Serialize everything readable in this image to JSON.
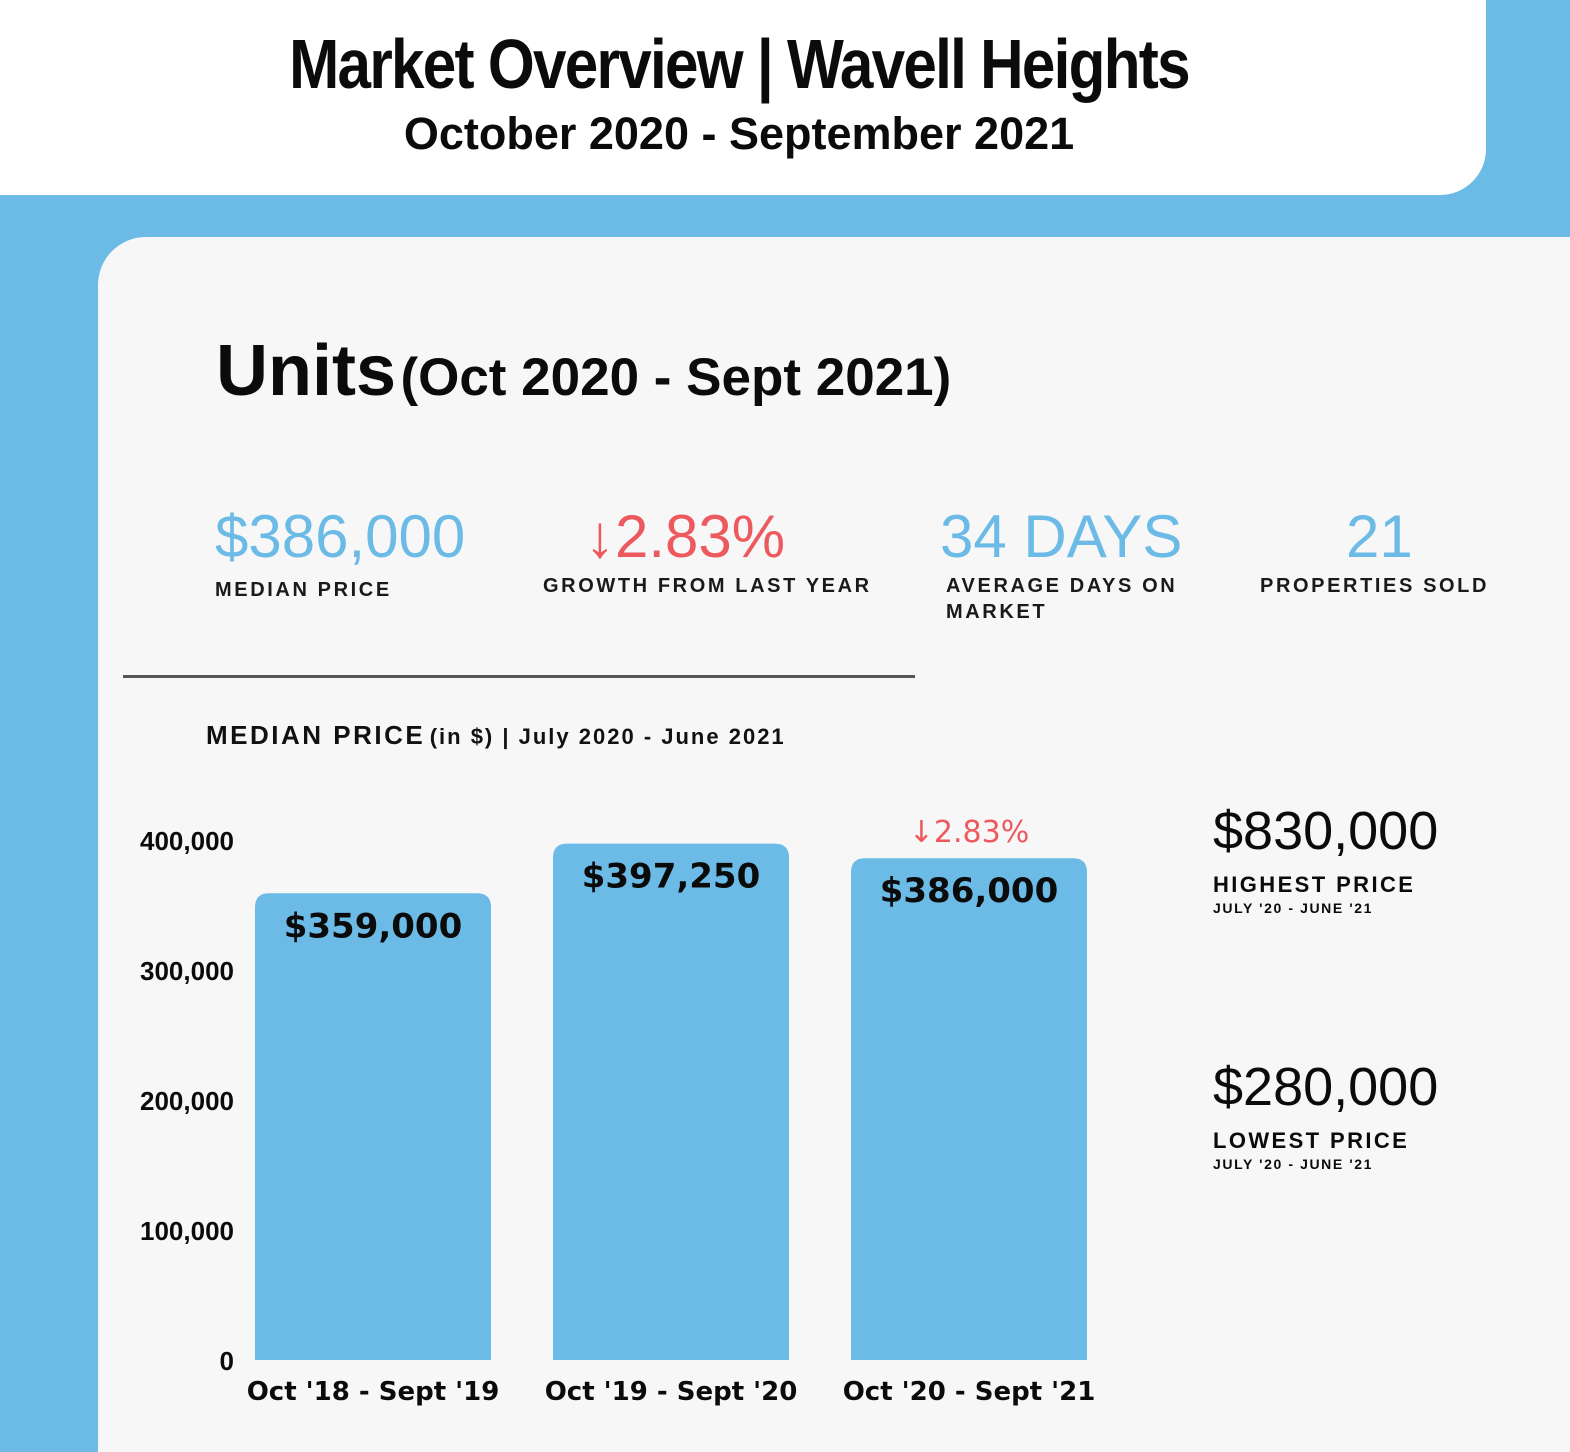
{
  "header": {
    "title": "Market Overview | Wavell Heights",
    "subtitle": "October 2020 - September 2021"
  },
  "section": {
    "title_main": "Units",
    "title_period": "(Oct 2020 - Sept 2021)"
  },
  "stats": [
    {
      "value": "$386,000",
      "label": "MEDIAN PRICE"
    },
    {
      "value": "↓2.83%",
      "label": "GROWTH FROM LAST YEAR"
    },
    {
      "value": "34 DAYS",
      "label": "AVERAGE DAYS ON MARKET"
    },
    {
      "value": "21",
      "label": "PROPERTIES SOLD"
    }
  ],
  "chart_heading": {
    "main": "MEDIAN PRICE",
    "rest": "(in $) | July 2020 - June 2021"
  },
  "side_stats": [
    {
      "value": "$830,000",
      "label": "HIGHEST PRICE",
      "period": "JULY '20 - JUNE '21"
    },
    {
      "value": "$280,000",
      "label": "LOWEST PRICE",
      "period": "JULY '20 - JUNE '21"
    }
  ],
  "colors": {
    "accent_blue": "#6cbbe7",
    "negative_red": "#ec5a5f",
    "card_bg": "#f7f7f7"
  },
  "chart_data": {
    "type": "bar",
    "title": "MEDIAN PRICE (in $) | July 2020 - June 2021",
    "categories": [
      "Oct '18 - Sept '19",
      "Oct '19 - Sept '20",
      "Oct '20 - Sept '21"
    ],
    "values": [
      359000,
      397250,
      386000
    ],
    "data_labels": [
      "$359,000",
      "$397,250",
      "$386,000"
    ],
    "annotations": [
      {
        "category": "Oct '20 - Sept '21",
        "text": "↓2.83%"
      }
    ],
    "yticks": [
      0,
      100000,
      200000,
      300000,
      400000
    ],
    "ytick_labels": [
      "0",
      "100,000",
      "200,000",
      "300,000",
      "400,000"
    ],
    "ylim": [
      0,
      400000
    ],
    "xlabel": "",
    "ylabel": "",
    "grid": false
  }
}
